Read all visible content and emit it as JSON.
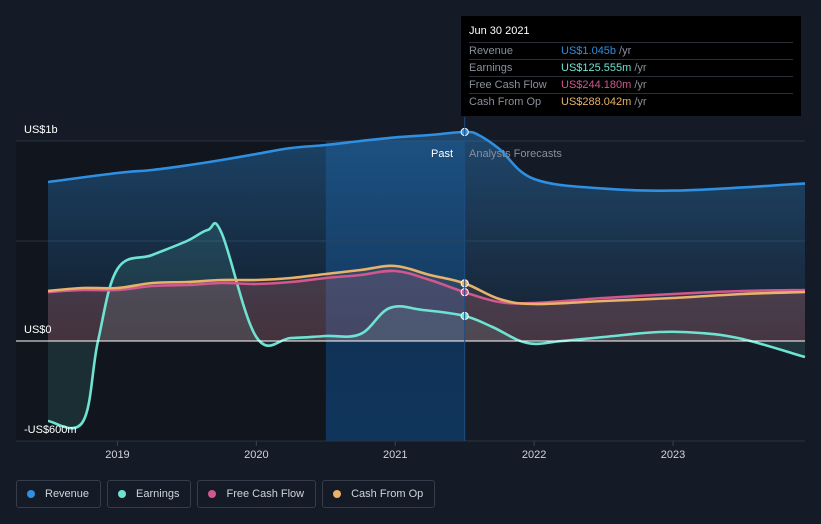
{
  "colors": {
    "revenue": "#2f8fe0",
    "earnings": "#6fe3d2",
    "fcf": "#d2578e",
    "cfo": "#e8b26a",
    "background": "#151b26",
    "past_band": "#0e2a4a"
  },
  "labels": {
    "past": "Past",
    "forecast": "Analysts Forecasts"
  },
  "tooltip": {
    "date": "Jun 30 2021",
    "rows": [
      {
        "label": "Revenue",
        "value": "US$1.045b",
        "unit": "/yr"
      },
      {
        "label": "Earnings",
        "value": "US$125.555m",
        "unit": "/yr"
      },
      {
        "label": "Free Cash Flow",
        "value": "US$244.180m",
        "unit": "/yr"
      },
      {
        "label": "Cash From Op",
        "value": "US$288.042m",
        "unit": "/yr"
      }
    ]
  },
  "legend": [
    {
      "label": "Revenue"
    },
    {
      "label": "Earnings"
    },
    {
      "label": "Free Cash Flow"
    },
    {
      "label": "Cash From Op"
    }
  ],
  "chart_data": {
    "type": "line",
    "title": "",
    "xlabel": "",
    "ylabel": "",
    "x_range": [
      2018.5,
      2023.95
    ],
    "ylim": [
      -600,
      1000
    ],
    "y_tick_labels": [
      {
        "value": 1000,
        "label": "US$1b"
      },
      {
        "value": 0,
        "label": "US$0"
      },
      {
        "value": -600,
        "label": "-US$600m"
      }
    ],
    "x_ticks": [
      {
        "value": 2019,
        "label": "2019"
      },
      {
        "value": 2020,
        "label": "2020"
      },
      {
        "value": 2021,
        "label": "2021"
      },
      {
        "value": 2022,
        "label": "2022"
      },
      {
        "value": 2023,
        "label": "2023"
      }
    ],
    "gridlines": [
      1000,
      500,
      0
    ],
    "past_region": [
      2020.5,
      2021.5
    ],
    "divider_x": 2021.5,
    "series": [
      {
        "name": "Revenue",
        "key": "revenue",
        "points": [
          [
            2018.5,
            795
          ],
          [
            2019.0,
            840
          ],
          [
            2019.25,
            855
          ],
          [
            2019.5,
            878
          ],
          [
            2019.75,
            905
          ],
          [
            2020.0,
            935
          ],
          [
            2020.25,
            965
          ],
          [
            2020.5,
            980
          ],
          [
            2020.75,
            1000
          ],
          [
            2021.0,
            1018
          ],
          [
            2021.25,
            1030
          ],
          [
            2021.5,
            1045
          ],
          [
            2021.6,
            1030
          ],
          [
            2021.75,
            960
          ],
          [
            2022.0,
            810
          ],
          [
            2022.5,
            762
          ],
          [
            2023.0,
            752
          ],
          [
            2023.5,
            768
          ],
          [
            2023.95,
            788
          ]
        ],
        "marker": [
          2021.5,
          1045
        ]
      },
      {
        "name": "Earnings",
        "key": "earnings",
        "points": [
          [
            2018.5,
            -400
          ],
          [
            2018.75,
            -405
          ],
          [
            2018.86,
            0
          ],
          [
            2019.0,
            360
          ],
          [
            2019.25,
            430
          ],
          [
            2019.5,
            500
          ],
          [
            2019.65,
            555
          ],
          [
            2019.75,
            540
          ],
          [
            2020.0,
            20
          ],
          [
            2020.25,
            15
          ],
          [
            2020.5,
            25
          ],
          [
            2020.75,
            35
          ],
          [
            2020.96,
            165
          ],
          [
            2021.2,
            155
          ],
          [
            2021.5,
            125
          ],
          [
            2021.7,
            70
          ],
          [
            2021.95,
            -10
          ],
          [
            2022.2,
            0
          ],
          [
            2022.5,
            20
          ],
          [
            2022.9,
            45
          ],
          [
            2023.2,
            40
          ],
          [
            2023.5,
            10
          ],
          [
            2023.95,
            -80
          ]
        ],
        "marker": [
          2021.5,
          125
        ]
      },
      {
        "name": "Free Cash Flow",
        "key": "fcf",
        "points": [
          [
            2018.5,
            245
          ],
          [
            2018.75,
            255
          ],
          [
            2019.0,
            255
          ],
          [
            2019.25,
            275
          ],
          [
            2019.5,
            280
          ],
          [
            2019.75,
            290
          ],
          [
            2020.0,
            285
          ],
          [
            2020.25,
            295
          ],
          [
            2020.5,
            315
          ],
          [
            2020.75,
            330
          ],
          [
            2021.0,
            350
          ],
          [
            2021.25,
            305
          ],
          [
            2021.5,
            244
          ],
          [
            2021.75,
            195
          ],
          [
            2022.0,
            190
          ],
          [
            2022.5,
            215
          ],
          [
            2023.0,
            235
          ],
          [
            2023.5,
            250
          ],
          [
            2023.95,
            255
          ]
        ],
        "marker": [
          2021.5,
          244
        ]
      },
      {
        "name": "Cash From Op",
        "key": "cfo",
        "points": [
          [
            2018.5,
            250
          ],
          [
            2018.75,
            265
          ],
          [
            2019.0,
            265
          ],
          [
            2019.25,
            290
          ],
          [
            2019.5,
            295
          ],
          [
            2019.75,
            305
          ],
          [
            2020.0,
            305
          ],
          [
            2020.25,
            315
          ],
          [
            2020.5,
            335
          ],
          [
            2020.75,
            355
          ],
          [
            2021.0,
            375
          ],
          [
            2021.25,
            330
          ],
          [
            2021.5,
            288
          ],
          [
            2021.75,
            210
          ],
          [
            2022.0,
            185
          ],
          [
            2022.5,
            200
          ],
          [
            2023.0,
            215
          ],
          [
            2023.5,
            235
          ],
          [
            2023.95,
            245
          ]
        ],
        "marker": [
          2021.5,
          288
        ]
      }
    ]
  }
}
